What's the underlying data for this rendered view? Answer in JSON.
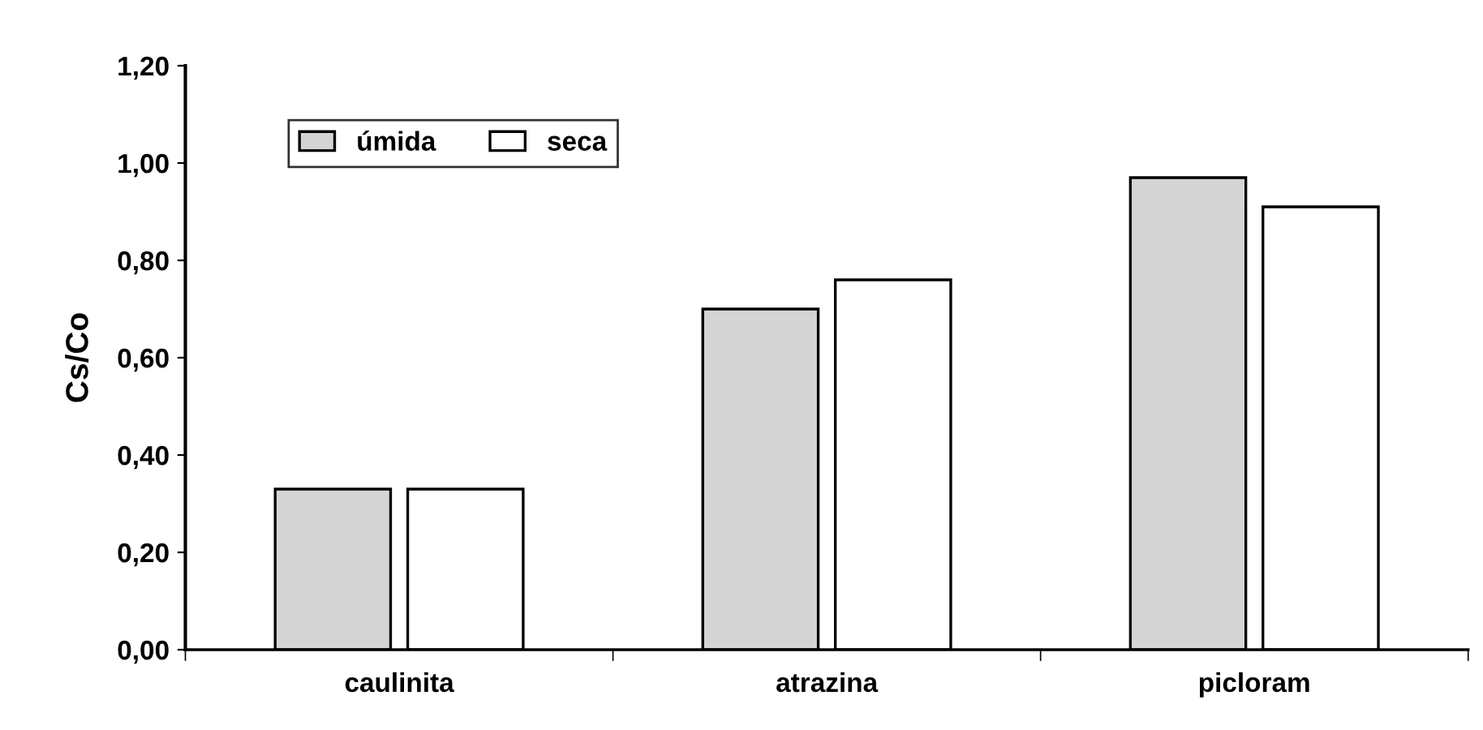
{
  "chart_data": {
    "type": "bar",
    "ylabel": "Cs/Co",
    "categories": [
      "caulinita",
      "atrazina",
      "picloram"
    ],
    "series": [
      {
        "name": "úmida",
        "color": "#d4d4d4",
        "values": [
          0.33,
          0.7,
          0.97
        ]
      },
      {
        "name": "seca",
        "color": "#ffffff",
        "values": [
          0.33,
          0.76,
          0.91
        ]
      }
    ],
    "ylim": [
      0,
      1.2
    ],
    "yticks": [
      {
        "value": 0,
        "label": "0,00"
      },
      {
        "value": 0.2,
        "label": "0,20"
      },
      {
        "value": 0.4,
        "label": "0,40"
      },
      {
        "value": 0.6,
        "label": "0,60"
      },
      {
        "value": 0.8,
        "label": "0,80"
      },
      {
        "value": 1.0,
        "label": "1,00"
      },
      {
        "value": 1.2,
        "label": "1,20"
      }
    ],
    "grid": false,
    "legend": "top left"
  }
}
